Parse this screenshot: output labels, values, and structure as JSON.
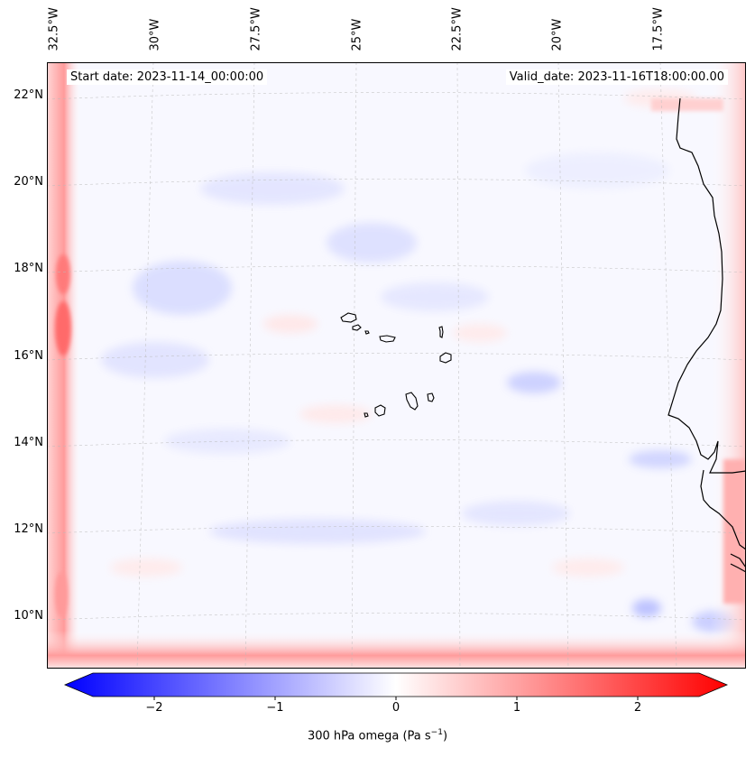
{
  "title_left": "Start date: 2023-11-14_00:00:00",
  "title_right": "Valid_date: 2023-11-16T18:00:00.00",
  "lon_ticks": [
    "32.5°W",
    "30°W",
    "27.5°W",
    "25°W",
    "22.5°W",
    "20°W",
    "17.5°W"
  ],
  "lat_ticks": [
    "22°N",
    "20°N",
    "18°N",
    "16°N",
    "14°N",
    "12°N",
    "10°N"
  ],
  "colorbar": {
    "ticks": [
      "−2",
      "−1",
      "0",
      "1",
      "2"
    ],
    "range": [
      -2.75,
      2.75
    ],
    "label": "300 hPa omega (Pa s",
    "label_sup": "−1",
    "label_end": ")",
    "colors": {
      "neg": "#0000ff",
      "mid": "#ffffff",
      "pos": "#ff0000"
    }
  }
}
